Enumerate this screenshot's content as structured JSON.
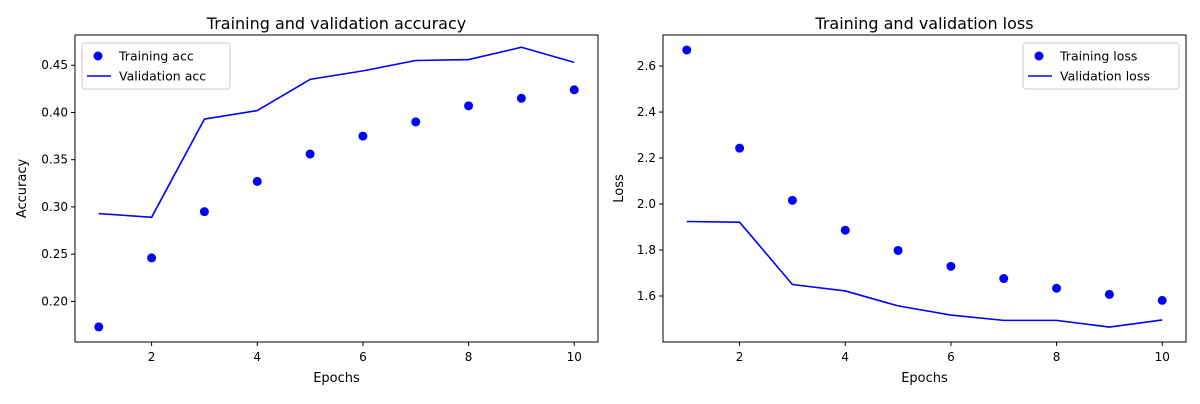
{
  "chart_data": [
    {
      "type": "line",
      "title": "Training and validation accuracy",
      "xlabel": "Epochs",
      "ylabel": "Accuracy",
      "xlim": [
        0.55,
        10.45
      ],
      "ylim": [
        0.157,
        0.482
      ],
      "xticks": [
        2,
        4,
        6,
        8,
        10
      ],
      "yticks": [
        0.2,
        0.25,
        0.3,
        0.35,
        0.4,
        0.45
      ],
      "ytick_labels": [
        "0.20",
        "0.25",
        "0.30",
        "0.35",
        "0.40",
        "0.45"
      ],
      "grid": false,
      "legend": "top-left",
      "x": [
        1,
        2,
        3,
        4,
        5,
        6,
        7,
        8,
        9,
        10
      ],
      "series": [
        {
          "name": "Training acc",
          "style": "points",
          "color": "#0000ff",
          "values": [
            0.173,
            0.246,
            0.295,
            0.327,
            0.356,
            0.375,
            0.39,
            0.407,
            0.415,
            0.424
          ]
        },
        {
          "name": "Validation acc",
          "style": "line",
          "color": "#0000ff",
          "values": [
            0.293,
            0.289,
            0.393,
            0.402,
            0.435,
            0.444,
            0.455,
            0.456,
            0.469,
            0.453
          ]
        }
      ]
    },
    {
      "type": "line",
      "title": "Training and validation loss",
      "xlabel": "Epochs",
      "ylabel": "Loss",
      "xlim": [
        0.55,
        10.45
      ],
      "ylim": [
        1.4,
        2.735
      ],
      "xticks": [
        2,
        4,
        6,
        8,
        10
      ],
      "yticks": [
        1.6,
        1.8,
        2.0,
        2.2,
        2.4,
        2.6
      ],
      "ytick_labels": [
        "1.6",
        "1.8",
        "2.0",
        "2.2",
        "2.4",
        "2.6"
      ],
      "grid": false,
      "legend": "top-right",
      "x": [
        1,
        2,
        3,
        4,
        5,
        6,
        7,
        8,
        9,
        10
      ],
      "series": [
        {
          "name": "Training loss",
          "style": "points",
          "color": "#0000ff",
          "values": [
            2.67,
            2.243,
            2.016,
            1.886,
            1.798,
            1.729,
            1.676,
            1.634,
            1.607,
            1.581
          ]
        },
        {
          "name": "Validation loss",
          "style": "line",
          "color": "#0000ff",
          "values": [
            1.924,
            1.921,
            1.65,
            1.622,
            1.557,
            1.517,
            1.494,
            1.494,
            1.465,
            1.496
          ]
        }
      ]
    }
  ]
}
